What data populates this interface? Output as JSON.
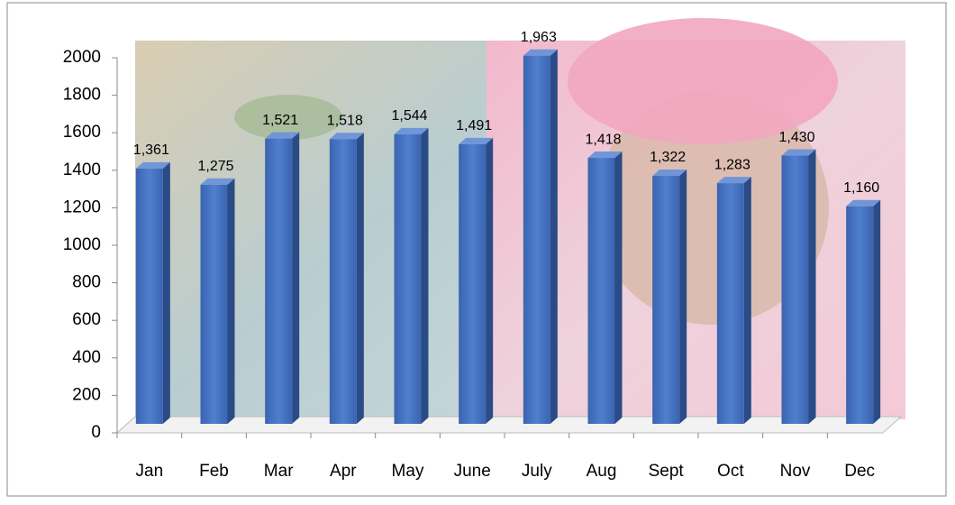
{
  "chart_data": {
    "type": "bar3d",
    "categories": [
      "Jan",
      "Feb",
      "Mar",
      "Apr",
      "May",
      "June",
      "July",
      "Aug",
      "Sept",
      "Oct",
      "Nov",
      "Dec"
    ],
    "values": [
      1361,
      1275,
      1521,
      1518,
      1544,
      1491,
      1963,
      1418,
      1322,
      1283,
      1430,
      1160
    ],
    "value_labels": [
      "1,361",
      "1,275",
      "1,521",
      "1,518",
      "1,544",
      "1,491",
      "1,963",
      "1,418",
      "1,322",
      "1,283",
      "1,430",
      "1,160"
    ],
    "color": "#4472c4",
    "ylim": [
      0,
      2000
    ],
    "yticks": [
      0,
      200,
      400,
      600,
      800,
      1000,
      1200,
      1400,
      1600,
      1800,
      2000
    ]
  }
}
